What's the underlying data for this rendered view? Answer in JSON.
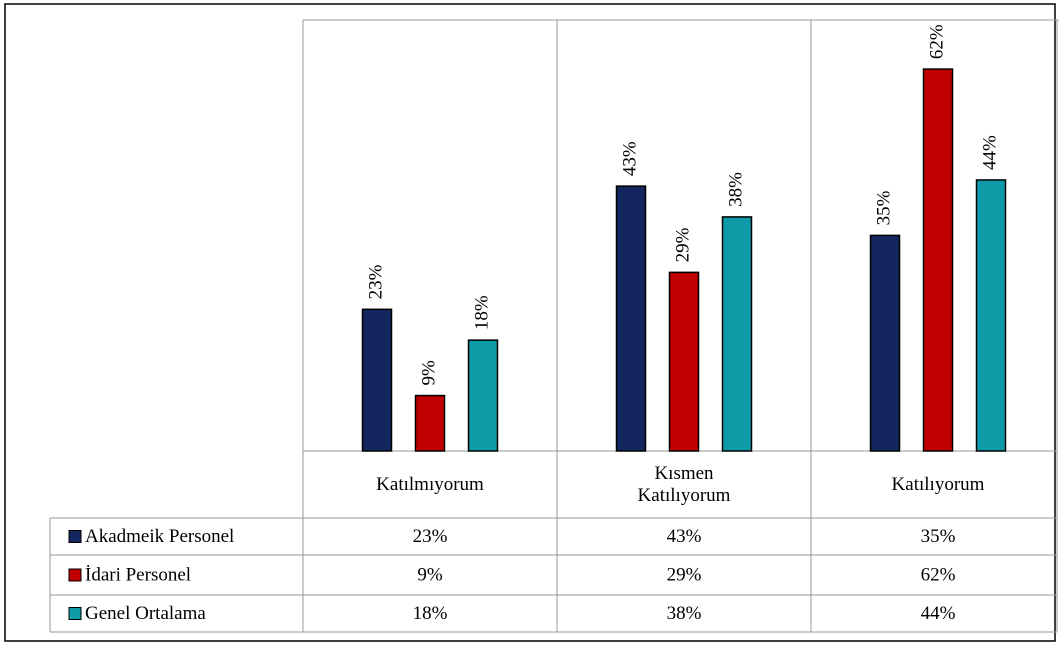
{
  "chart_data": {
    "type": "bar",
    "categories": [
      "Katılmıyorum",
      "Kısmen Katılıyorum",
      "Katılıyorum"
    ],
    "series": [
      {
        "name": "Akadmeik Personel",
        "color": "#13275e",
        "values": [
          23,
          43,
          35
        ],
        "value_labels": [
          "23%",
          "43%",
          "35%"
        ]
      },
      {
        "name": "İdari Personel",
        "color": "#c00000",
        "values": [
          9,
          29,
          62
        ],
        "value_labels": [
          "9%",
          "29%",
          "62%"
        ]
      },
      {
        "name": "Genel Ortalama",
        "color": "#0e9aa7",
        "values": [
          18,
          38,
          44
        ],
        "value_labels": [
          "18%",
          "38%",
          "44%"
        ]
      }
    ],
    "data_table": true
  }
}
